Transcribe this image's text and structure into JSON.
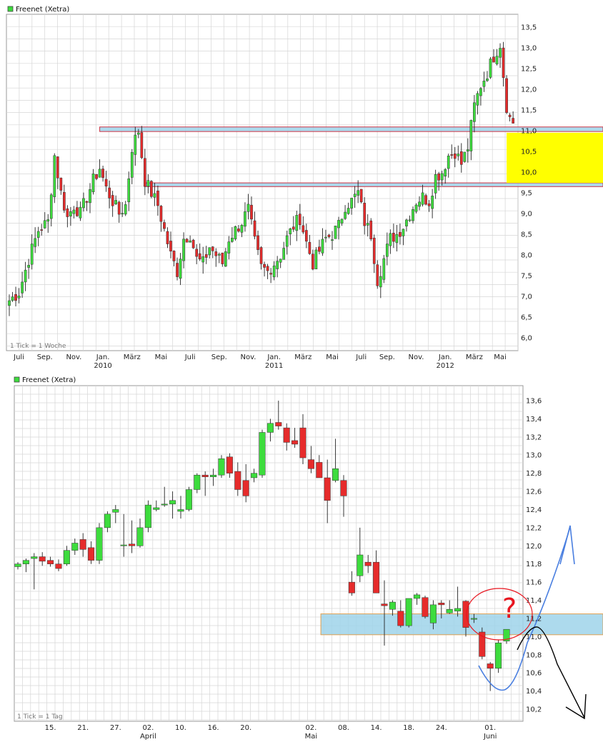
{
  "colors": {
    "up": "#3ddc3d",
    "down": "#e62b2b",
    "grid": "#d6d6d6",
    "zone_blue": "#9fd3ea",
    "zone_yellow": "#ffff00",
    "zone_border_red": "#cc3344",
    "zone_border_orange": "#e0a050",
    "arrow_blue": "#4a7fe0",
    "arrow_black": "#000000",
    "circle_red": "#e8141e"
  },
  "chart_data": [
    {
      "type": "candlestick",
      "title": "Freenet (Xetra)",
      "tick_note": "1 Tick = 1 Woche",
      "ylim": [
        5.9,
        13.7
      ],
      "yticks": [
        "13,5",
        "13,0",
        "12,5",
        "12,0",
        "11,5",
        "11,0",
        "10,5",
        "10,0",
        "9,5",
        "9,0",
        "8,5",
        "8,0",
        "7,5",
        "7,0",
        "6,5",
        "6,0"
      ],
      "ytick_values": [
        13.5,
        13.0,
        12.5,
        12.0,
        11.5,
        11.0,
        10.5,
        10.0,
        9.5,
        9.0,
        8.5,
        8.0,
        7.5,
        7.0,
        6.5,
        6.0
      ],
      "months": [
        "Juli",
        "Sep.",
        "Nov.",
        "Jan.",
        "März",
        "Mai",
        "Juli",
        "Sep.",
        "Nov.",
        "Jan.",
        "März",
        "Mai",
        "Juli",
        "Sep.",
        "Nov.",
        "Jan.",
        "März",
        "Mai"
      ],
      "month_index": [
        3,
        11,
        20,
        29,
        38,
        47,
        56,
        65,
        74,
        82,
        91,
        100,
        109,
        117,
        126,
        135,
        144,
        152
      ],
      "years": [
        "2010",
        "2011",
        "2012"
      ],
      "year_index": [
        29,
        82,
        135
      ],
      "zones": [
        {
          "kind": "band",
          "color": "blue",
          "y1": 11.09,
          "y2": 10.98,
          "from_index": 28
        },
        {
          "kind": "band",
          "color": "blue",
          "y1": 9.74,
          "y2": 9.65,
          "from_index": 42
        },
        {
          "kind": "box",
          "color": "yellow",
          "y1": 10.95,
          "y2": 9.74,
          "from_index": 154
        }
      ],
      "anchors": [
        [
          0,
          6.9
        ],
        [
          3,
          7.1
        ],
        [
          6,
          7.9
        ],
        [
          9,
          8.6
        ],
        [
          12,
          8.8
        ],
        [
          14,
          10.4
        ],
        [
          16,
          9.5
        ],
        [
          18,
          8.9
        ],
        [
          20,
          9.2
        ],
        [
          22,
          9.0
        ],
        [
          24,
          9.4
        ],
        [
          26,
          9.8
        ],
        [
          28,
          10.1
        ],
        [
          30,
          9.6
        ],
        [
          32,
          9.3
        ],
        [
          34,
          9.0
        ],
        [
          36,
          9.2
        ],
        [
          38,
          10.6
        ],
        [
          40,
          11.0
        ],
        [
          42,
          9.8
        ],
        [
          44,
          9.5
        ],
        [
          46,
          9.2
        ],
        [
          48,
          8.6
        ],
        [
          50,
          8.0
        ],
        [
          52,
          7.6
        ],
        [
          54,
          8.4
        ],
        [
          56,
          8.5
        ],
        [
          58,
          7.9
        ],
        [
          60,
          7.8
        ],
        [
          62,
          8.2
        ],
        [
          64,
          8.0
        ],
        [
          66,
          7.8
        ],
        [
          68,
          8.4
        ],
        [
          70,
          8.6
        ],
        [
          72,
          8.8
        ],
        [
          74,
          9.1
        ],
        [
          76,
          8.3
        ],
        [
          78,
          7.7
        ],
        [
          80,
          7.6
        ],
        [
          82,
          7.8
        ],
        [
          84,
          8.0
        ],
        [
          86,
          8.4
        ],
        [
          88,
          8.7
        ],
        [
          90,
          8.9
        ],
        [
          92,
          8.3
        ],
        [
          94,
          7.8
        ],
        [
          96,
          8.1
        ],
        [
          98,
          8.4
        ],
        [
          100,
          8.5
        ],
        [
          102,
          8.7
        ],
        [
          104,
          9.2
        ],
        [
          106,
          9.3
        ],
        [
          108,
          9.5
        ],
        [
          110,
          8.8
        ],
        [
          112,
          8.5
        ],
        [
          114,
          7.4
        ],
        [
          116,
          7.9
        ],
        [
          118,
          8.4
        ],
        [
          120,
          8.5
        ],
        [
          122,
          8.7
        ],
        [
          124,
          9.0
        ],
        [
          126,
          9.3
        ],
        [
          128,
          9.4
        ],
        [
          130,
          9.3
        ],
        [
          132,
          9.9
        ],
        [
          134,
          10.0
        ],
        [
          136,
          10.4
        ],
        [
          138,
          10.5
        ],
        [
          140,
          10.2
        ],
        [
          142,
          10.6
        ],
        [
          144,
          11.6
        ],
        [
          146,
          12.1
        ],
        [
          148,
          12.4
        ],
        [
          150,
          12.8
        ],
        [
          152,
          13.1
        ],
        [
          154,
          11.6
        ],
        [
          155,
          11.3
        ],
        [
          156,
          11.2
        ]
      ],
      "n_candles": 157,
      "seed": 7
    },
    {
      "type": "candlestick",
      "title": "Freenet (Xetra)",
      "tick_note": "1 Tick = 1 Tag",
      "ylim": [
        10.05,
        13.75
      ],
      "yticks": [
        "13,6",
        "13,4",
        "13,2",
        "13,0",
        "12,8",
        "12,6",
        "12,4",
        "12,2",
        "12,0",
        "11,8",
        "11,6",
        "11,4",
        "11,2",
        "11,0",
        "10,8",
        "10,6",
        "10,4",
        "10,2"
      ],
      "ytick_values": [
        13.6,
        13.4,
        13.2,
        13.0,
        12.8,
        12.6,
        12.4,
        12.2,
        12.0,
        11.8,
        11.6,
        11.4,
        11.2,
        11.0,
        10.8,
        10.6,
        10.4,
        10.2
      ],
      "xticks": [
        "15.",
        "21.",
        "27.",
        "02.",
        "10.",
        "16.",
        "20.",
        "02.",
        "08.",
        "14.",
        "18.",
        "24.",
        "01."
      ],
      "xtick_index": [
        4,
        8,
        12,
        16,
        20,
        24,
        28,
        36,
        40,
        44,
        48,
        52,
        58
      ],
      "months": [
        "April",
        "Mai",
        "Juni"
      ],
      "month_index": [
        16,
        36,
        58
      ],
      "zones": [
        {
          "kind": "band",
          "color": "blue",
          "y1": 11.25,
          "y2": 11.02,
          "from_index": 37.2
        }
      ],
      "candles": [
        [
          11.77,
          11.82,
          11.74,
          11.8
        ],
        [
          11.8,
          11.86,
          11.71,
          11.84
        ],
        [
          11.86,
          11.92,
          11.52,
          11.88
        ],
        [
          11.88,
          11.93,
          11.78,
          11.83
        ],
        [
          11.84,
          11.88,
          11.77,
          11.8
        ],
        [
          11.8,
          11.85,
          11.72,
          11.75
        ],
        [
          11.8,
          12.0,
          11.78,
          11.95
        ],
        [
          11.95,
          12.08,
          11.9,
          12.03
        ],
        [
          12.07,
          12.14,
          11.88,
          11.96
        ],
        [
          11.98,
          12.05,
          11.8,
          11.84
        ],
        [
          11.84,
          12.25,
          11.8,
          12.2
        ],
        [
          12.2,
          12.38,
          12.15,
          12.35
        ],
        [
          12.37,
          12.45,
          12.25,
          12.4
        ],
        [
          12.0,
          12.35,
          11.88,
          12.01
        ],
        [
          12.02,
          12.28,
          11.92,
          12.0
        ],
        [
          12.0,
          12.3,
          11.98,
          12.2
        ],
        [
          12.2,
          12.5,
          12.15,
          12.45
        ],
        [
          12.4,
          12.5,
          12.38,
          12.42
        ],
        [
          12.45,
          12.65,
          12.43,
          12.46
        ],
        [
          12.46,
          12.6,
          12.3,
          12.5
        ],
        [
          12.38,
          12.55,
          12.3,
          12.4
        ],
        [
          12.4,
          12.65,
          12.38,
          12.62
        ],
        [
          12.62,
          12.8,
          12.58,
          12.78
        ],
        [
          12.78,
          12.82,
          12.55,
          12.76
        ],
        [
          12.76,
          12.85,
          12.66,
          12.78
        ],
        [
          12.78,
          13.0,
          12.75,
          12.96
        ],
        [
          12.98,
          13.02,
          12.75,
          12.8
        ],
        [
          12.82,
          12.92,
          12.55,
          12.62
        ],
        [
          12.72,
          12.9,
          12.48,
          12.55
        ],
        [
          12.75,
          12.85,
          12.7,
          12.8
        ],
        [
          12.78,
          13.28,
          12.75,
          13.25
        ],
        [
          13.25,
          13.4,
          13.15,
          13.35
        ],
        [
          13.36,
          13.6,
          13.28,
          13.32
        ],
        [
          13.3,
          13.35,
          13.05,
          13.14
        ],
        [
          13.16,
          13.3,
          13.08,
          13.12
        ],
        [
          13.3,
          13.45,
          12.9,
          12.97
        ],
        [
          12.95,
          13.1,
          12.8,
          12.85
        ],
        [
          12.92,
          13.0,
          12.75,
          12.75
        ],
        [
          12.75,
          12.95,
          12.25,
          12.5
        ],
        [
          12.72,
          13.18,
          12.7,
          12.85
        ],
        [
          12.72,
          12.78,
          12.32,
          12.55
        ],
        [
          11.6,
          11.72,
          11.45,
          11.48
        ],
        [
          11.67,
          12.2,
          11.6,
          11.9
        ],
        [
          11.82,
          11.9,
          11.7,
          11.78
        ],
        [
          11.82,
          11.95,
          11.48,
          11.48
        ],
        [
          11.36,
          11.62,
          10.9,
          11.34
        ],
        [
          11.3,
          11.4,
          11.23,
          11.38
        ],
        [
          11.28,
          11.4,
          11.1,
          11.12
        ],
        [
          11.12,
          11.42,
          11.1,
          11.42
        ],
        [
          11.42,
          11.48,
          11.35,
          11.46
        ],
        [
          11.43,
          11.45,
          11.2,
          11.22
        ],
        [
          11.15,
          11.4,
          11.08,
          11.35
        ],
        [
          11.37,
          11.4,
          11.2,
          11.35
        ],
        [
          11.26,
          11.4,
          11.25,
          11.3
        ],
        [
          11.28,
          11.55,
          11.22,
          11.31
        ],
        [
          11.39,
          11.4,
          11.0,
          11.1
        ],
        [
          11.2,
          11.25,
          11.15,
          11.2
        ],
        [
          11.05,
          11.1,
          10.75,
          10.78
        ],
        [
          10.7,
          10.72,
          10.4,
          10.65
        ],
        [
          10.65,
          10.96,
          10.6,
          10.93
        ],
        [
          10.95,
          11.08,
          10.92,
          11.08
        ]
      ]
    }
  ]
}
